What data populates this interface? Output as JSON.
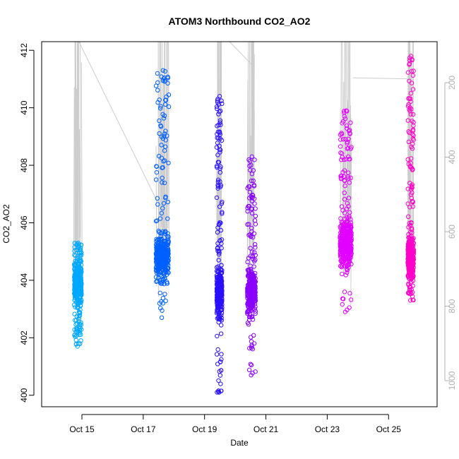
{
  "chart_data": {
    "type": "scatter",
    "title": "ATOM3 Northbound CO2_AO2",
    "xlabel": "Date",
    "ylabel": "CO2_AO2",
    "xlim": [
      "2016-10-13T16:30",
      "2016-10-26T14:00"
    ],
    "ylim": [
      399.6,
      412.3
    ],
    "x_ticks": [
      {
        "date": "2016-10-15",
        "label": "Oct 15"
      },
      {
        "date": "2016-10-17",
        "label": "Oct 17"
      },
      {
        "date": "2016-10-19",
        "label": "Oct 19"
      },
      {
        "date": "2016-10-21",
        "label": "Oct 21"
      },
      {
        "date": "2016-10-23",
        "label": "Oct 23"
      },
      {
        "date": "2016-10-25",
        "label": "Oct 25"
      }
    ],
    "y_ticks": [
      400,
      402,
      404,
      406,
      408,
      410,
      412
    ],
    "secondary_axis": {
      "side": "right",
      "reversed": true,
      "color": "#b0b0b0",
      "ticks": [
        200,
        400,
        600,
        800,
        1000
      ],
      "range": [
        90,
        1070
      ],
      "series_color": "#cccccc"
    },
    "grid": false,
    "marker": "open-circle",
    "series": [
      {
        "start": "2016-10-14T18:00",
        "end": "2016-10-14T23:40",
        "y_range": [
          401.7,
          405.3
        ],
        "center": 403.9,
        "color": "#00a8ff"
      },
      {
        "start": "2016-10-17T10:00",
        "end": "2016-10-17T20:00",
        "y_range": [
          402.7,
          411.3
        ],
        "center": 404.8,
        "color": "#0060ff"
      },
      {
        "start": "2016-10-19T09:30",
        "end": "2016-10-19T13:40",
        "y_range": [
          400.1,
          410.4
        ],
        "center": 403.6,
        "color": "#2a10ff"
      },
      {
        "start": "2016-10-20T09:30",
        "end": "2016-10-20T16:00",
        "y_range": [
          400.7,
          408.3
        ],
        "center": 403.6,
        "color": "#8a00ff"
      },
      {
        "start": "2016-10-23T10:00",
        "end": "2016-10-23T19:00",
        "y_range": [
          402.9,
          409.9
        ],
        "center": 405.3,
        "color": "#e200ff"
      },
      {
        "start": "2016-10-25T15:00",
        "end": "2016-10-25T19:40",
        "y_range": [
          403.3,
          411.8
        ],
        "center": 404.8,
        "color": "#ff00c8"
      }
    ]
  }
}
